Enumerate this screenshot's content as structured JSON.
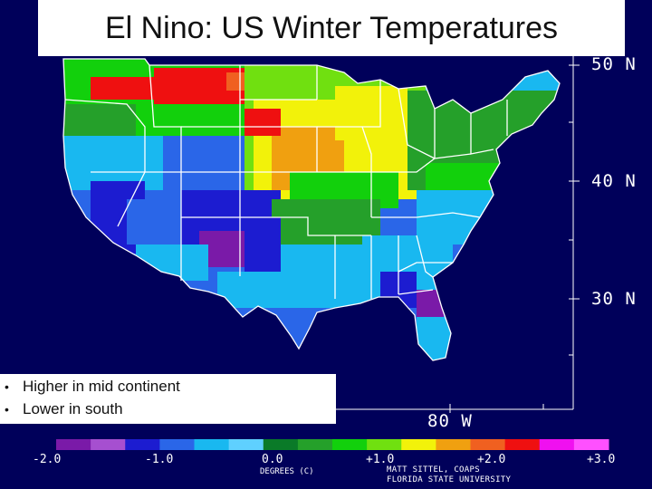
{
  "slide": {
    "title": "El Nino: US Winter Temperatures",
    "bullets": [
      "Higher in mid continent",
      "Lower in south"
    ]
  },
  "map": {
    "latitude_labels": [
      "50 N",
      "40 N",
      "30 N"
    ],
    "longitude_labels": [
      "80 W"
    ],
    "region": "Contiguous United States",
    "borders_color": "#ffffff",
    "background_color": "#00005a"
  },
  "color_scale": {
    "units": "DEGREES (C)",
    "tick_labels": [
      "-2.0",
      "-1.0",
      "0.0",
      "+1.0",
      "+2.0",
      "+3.0"
    ],
    "colors": [
      "#7a1aa8",
      "#a64fd0",
      "#1c1cd0",
      "#2a66e8",
      "#19b8f0",
      "#5fd0ff",
      "#0a7a28",
      "#25a02a",
      "#12d00c",
      "#70e010",
      "#f2f20a",
      "#f0a010",
      "#f06020",
      "#ef1010",
      "#f010f0",
      "#ff50ff"
    ]
  },
  "credits": [
    "MATT SITTEL, COAPS",
    "FLORIDA STATE UNIVERSITY"
  ]
}
